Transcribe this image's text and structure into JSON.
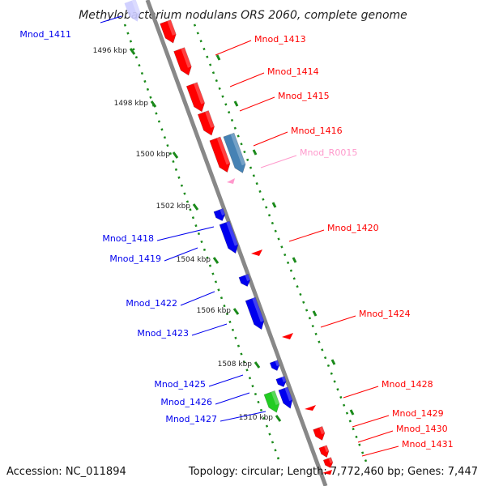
{
  "title": "Methylobacterium nodulans ORS 2060, complete genome",
  "footer": {
    "accession": "Accession: NC_011894",
    "topology": "Topology: circular; Length: 7,772,460 bp; Genes: 7,447"
  },
  "colors": {
    "forward": "#ff0000",
    "reverse": "#0000ee",
    "rna": "#4682b4",
    "pseudo": "#ff99cc",
    "other": "#22cc22",
    "ruler": "#1a8a1a",
    "backbone": "#888888"
  },
  "kbp_marks": [
    {
      "label": "1496 kbp"
    },
    {
      "label": "1498 kbp"
    },
    {
      "label": "1500 kbp"
    },
    {
      "label": "1502 kbp"
    },
    {
      "label": "1504 kbp"
    },
    {
      "label": "1506 kbp"
    },
    {
      "label": "1508 kbp"
    },
    {
      "label": "1510 kbp"
    }
  ],
  "genes_left": [
    {
      "label": "Mnod_1411"
    },
    {
      "label": "Mnod_1418"
    },
    {
      "label": "Mnod_1419"
    },
    {
      "label": "Mnod_1422"
    },
    {
      "label": "Mnod_1423"
    },
    {
      "label": "Mnod_1425"
    },
    {
      "label": "Mnod_1426"
    },
    {
      "label": "Mnod_1427"
    }
  ],
  "genes_right": [
    {
      "label": "Mnod_1413"
    },
    {
      "label": "Mnod_1414"
    },
    {
      "label": "Mnod_1415"
    },
    {
      "label": "Mnod_1416"
    },
    {
      "label": "Mnod_R0015"
    },
    {
      "label": "Mnod_1420"
    },
    {
      "label": "Mnod_1424"
    },
    {
      "label": "Mnod_1428"
    },
    {
      "label": "Mnod_1429"
    },
    {
      "label": "Mnod_1430"
    },
    {
      "label": "Mnod_1431"
    }
  ]
}
